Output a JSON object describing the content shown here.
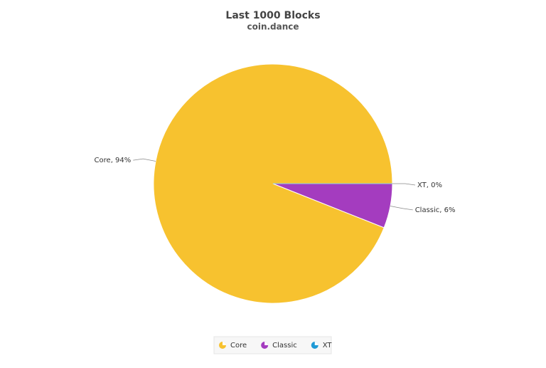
{
  "chart_data": {
    "type": "pie",
    "title": "Last 1000 Blocks",
    "subtitle": "coin.dance",
    "categories": [
      "Core",
      "Classic",
      "XT"
    ],
    "values": [
      94,
      6,
      0
    ],
    "value_labels": [
      "Core, 94%",
      "Classic, 6%",
      "XT, 0%"
    ],
    "colors": [
      "#f7c22f",
      "#a43cbf",
      "#1f9ad6"
    ],
    "legend": "bottom"
  }
}
